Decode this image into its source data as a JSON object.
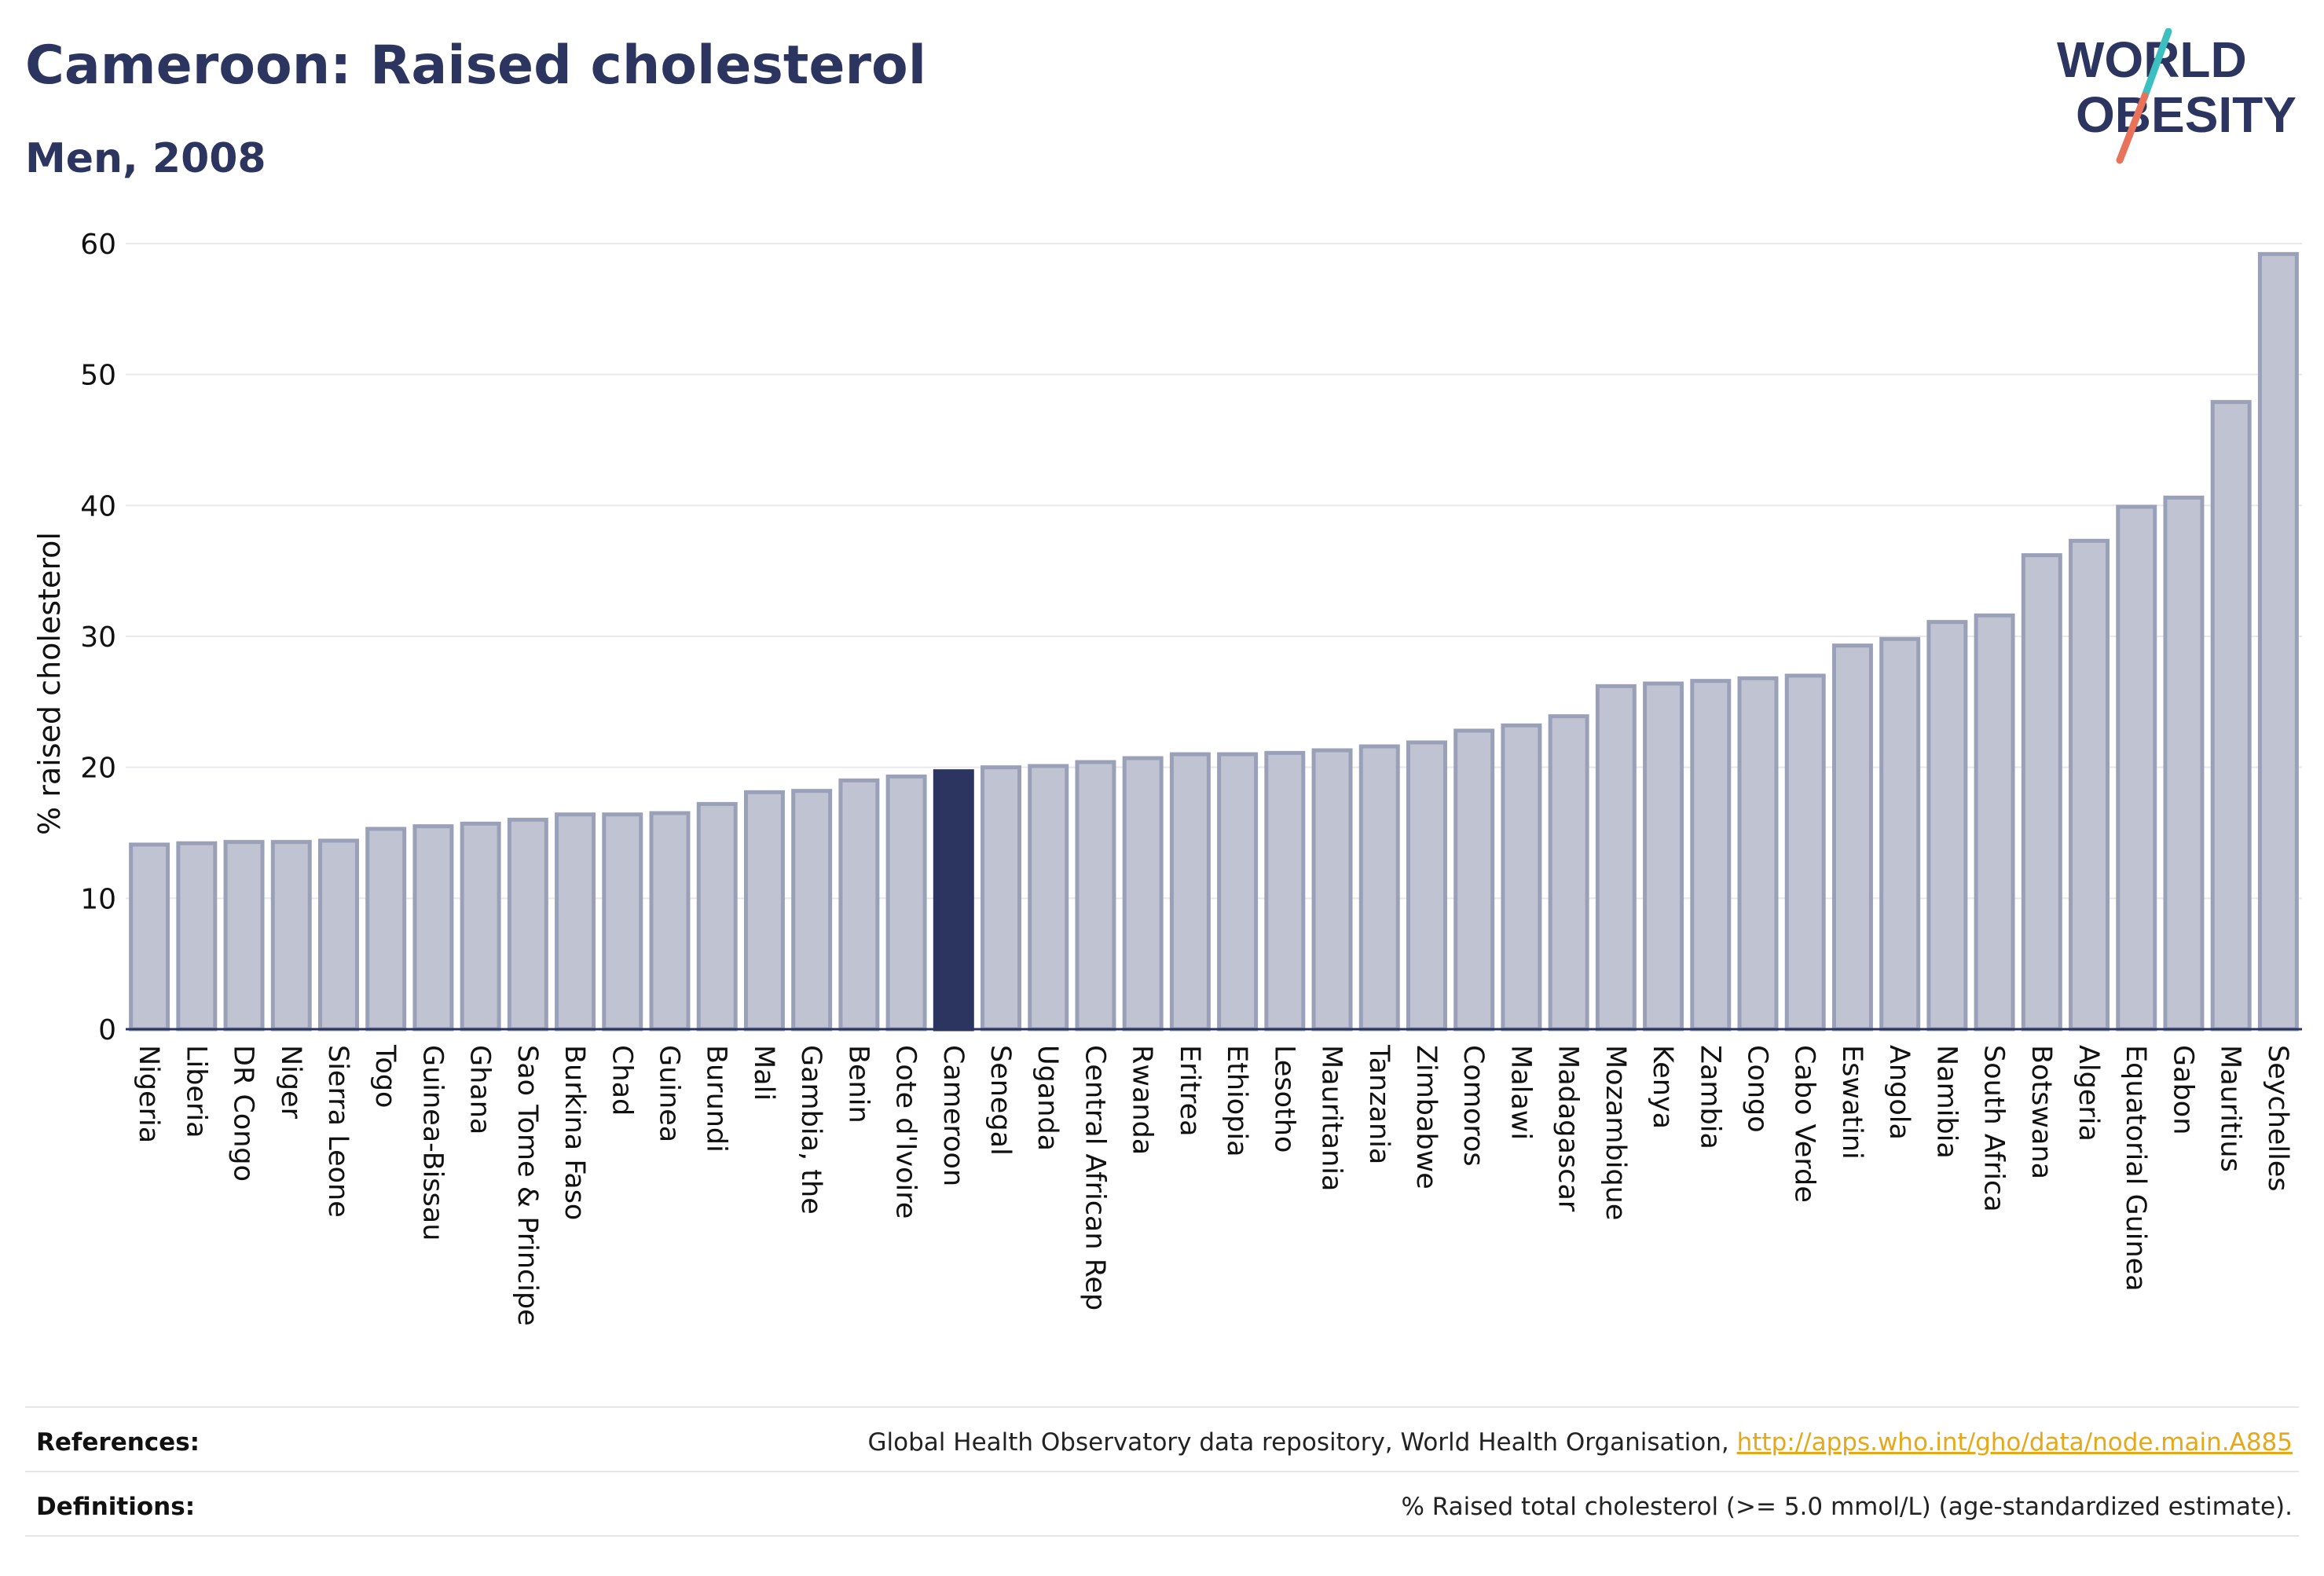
{
  "header": {
    "title": "Cameroon: Raised cholesterol",
    "subtitle": "Men, 2008"
  },
  "logo": {
    "line1": "WORLD",
    "line2": "OBESITY",
    "colors": {
      "text": "#2b3560",
      "slash_top": "#3bbfbf",
      "slash_bottom": "#e8735a"
    }
  },
  "colors": {
    "bar": "#bfc3d2",
    "bar_stroke": "#9aa0b8",
    "highlight": "#2b3560",
    "grid": "#e8e8ee",
    "axis": "#2b3560"
  },
  "chart_data": {
    "type": "bar",
    "title": "",
    "xlabel": "",
    "ylabel": "% raised cholesterol",
    "ylim": [
      0,
      60
    ],
    "yticks": [
      0,
      10,
      20,
      30,
      40,
      50,
      60
    ],
    "grid": true,
    "highlight": "Cameroon",
    "categories": [
      "Nigeria",
      "Liberia",
      "DR Congo",
      "Niger",
      "Sierra Leone",
      "Togo",
      "Guinea-Bissau",
      "Ghana",
      "Sao Tome & Principe",
      "Burkina Faso",
      "Chad",
      "Guinea",
      "Burundi",
      "Mali",
      "Gambia, the",
      "Benin",
      "Cote d'Ivoire",
      "Cameroon",
      "Senegal",
      "Uganda",
      "Central African Rep",
      "Rwanda",
      "Eritrea",
      "Ethiopia",
      "Lesotho",
      "Mauritania",
      "Tanzania",
      "Zimbabwe",
      "Comoros",
      "Malawi",
      "Madagascar",
      "Mozambique",
      "Kenya",
      "Zambia",
      "Congo",
      "Cabo Verde",
      "Eswatini",
      "Angola",
      "Namibia",
      "South Africa",
      "Botswana",
      "Algeria",
      "Equatorial Guinea",
      "Gabon",
      "Mauritius",
      "Seychelles"
    ],
    "values": [
      14.1,
      14.2,
      14.3,
      14.3,
      14.4,
      15.3,
      15.5,
      15.7,
      16.0,
      16.4,
      16.4,
      16.5,
      17.2,
      18.1,
      18.2,
      19.0,
      19.3,
      19.7,
      20.0,
      20.1,
      20.4,
      20.7,
      21.0,
      21.0,
      21.1,
      21.3,
      21.6,
      21.9,
      22.8,
      23.2,
      23.9,
      26.2,
      26.4,
      26.6,
      26.8,
      27.0,
      29.3,
      29.8,
      31.1,
      31.6,
      36.2,
      37.3,
      39.9,
      40.6,
      47.9,
      59.2
    ]
  },
  "footer": {
    "references_label": "References:",
    "references_text": "Global Health Observatory data repository, World Health Organisation, ",
    "references_link": "http://apps.who.int/gho/data/node.main.A885",
    "definitions_label": "Definitions:",
    "definitions_text": "% Raised total cholesterol (>= 5.0 mmol/L) (age-standardized estimate)."
  }
}
